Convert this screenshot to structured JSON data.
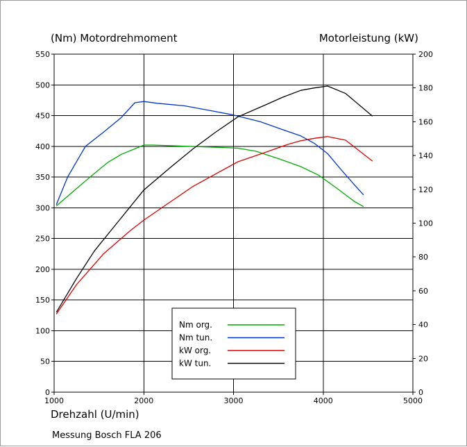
{
  "chart_data": {
    "type": "line",
    "left_axis_title": "(Nm)  Motordrehmoment",
    "right_axis_title": "Motorleistung  (kW)",
    "xlabel": "Drehzahl  (U/min)",
    "footnote": "Messung Bosch FLA 206",
    "xlim": [
      1000,
      5000
    ],
    "xticks": [
      1000,
      2000,
      3000,
      4000,
      5000
    ],
    "ylim_left": [
      0,
      550
    ],
    "yticks_left": [
      0,
      50,
      100,
      150,
      200,
      250,
      300,
      350,
      400,
      450,
      500,
      550
    ],
    "ylim_right": [
      0,
      200
    ],
    "yticks_right": [
      0,
      20,
      40,
      60,
      80,
      100,
      120,
      140,
      160,
      180,
      200
    ],
    "grid": true,
    "legend_position": "bottom-center",
    "series": [
      {
        "name": "Nm org.",
        "axis": "left",
        "color": "#00aa00",
        "x": [
          1025,
          1200,
          1400,
          1600,
          1750,
          1900,
          2000,
          2100,
          2300,
          2500,
          2700,
          2900,
          3050,
          3250,
          3500,
          3750,
          3950,
          4150,
          4350,
          4450
        ],
        "y": [
          303,
          325,
          350,
          374,
          387,
          396,
          402,
          402,
          401,
          400,
          399,
          398,
          397,
          392,
          380,
          367,
          353,
          332,
          310,
          302
        ]
      },
      {
        "name": "Nm tun.",
        "axis": "left",
        "color": "#0033cc",
        "x": [
          1025,
          1150,
          1350,
          1550,
          1750,
          1900,
          2000,
          2150,
          2450,
          2750,
          3000,
          3300,
          3550,
          3750,
          3900,
          4050,
          4200,
          4350,
          4450
        ],
        "y": [
          305,
          350,
          400,
          423,
          447,
          471,
          473,
          470,
          466,
          458,
          451,
          440,
          427,
          417,
          405,
          388,
          362,
          337,
          321
        ]
      },
      {
        "name": "kW org.",
        "axis": "left-scaled",
        "color": "#dd0000",
        "x": [
          1025,
          1250,
          1550,
          1850,
          2000,
          2250,
          2550,
          2800,
          3050,
          3350,
          3600,
          3750,
          3900,
          4050,
          4250,
          4550
        ],
        "y": [
          127,
          175,
          225,
          263,
          280,
          305,
          335,
          355,
          375,
          390,
          403,
          409,
          413,
          416,
          410,
          376
        ]
      },
      {
        "name": "kW tun.",
        "axis": "left-scaled",
        "color": "#000000",
        "x": [
          1025,
          1250,
          1450,
          1700,
          2000,
          2300,
          2550,
          2800,
          3050,
          3350,
          3550,
          3750,
          3900,
          4050,
          4250,
          4550
        ],
        "y": [
          130,
          185,
          230,
          275,
          329,
          366,
          396,
          423,
          448,
          467,
          480,
          491,
          495,
          498,
          486,
          449
        ]
      }
    ]
  }
}
